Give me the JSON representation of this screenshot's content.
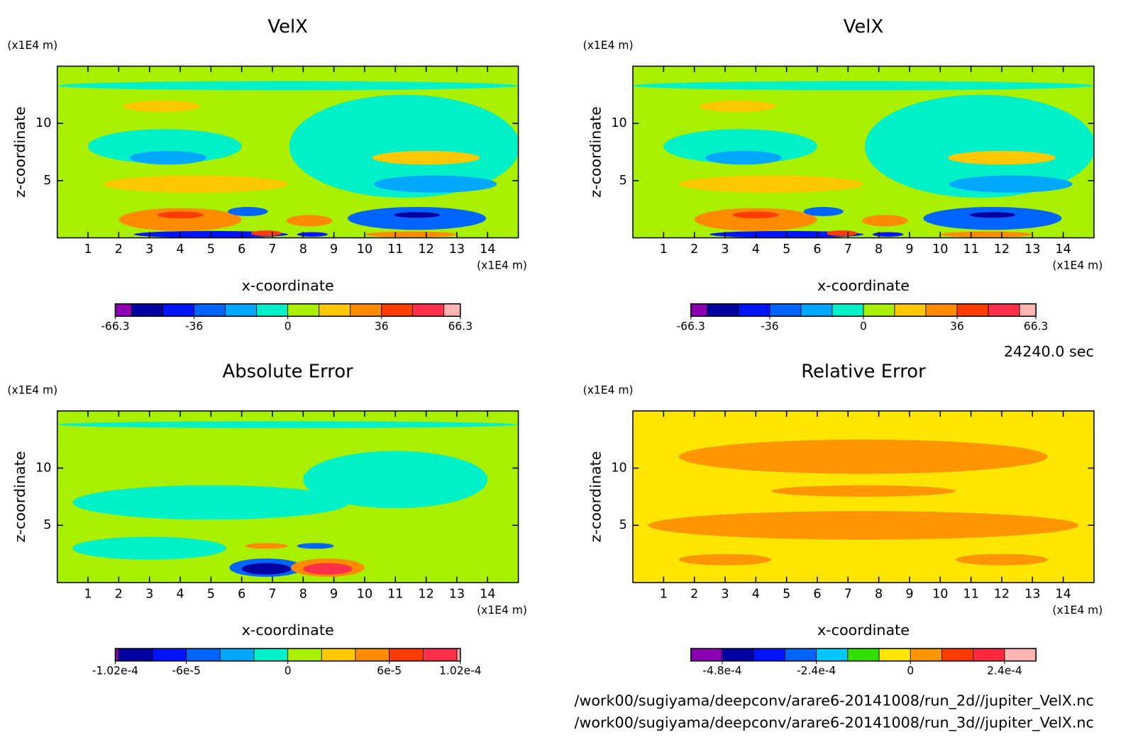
{
  "chart_data": [
    {
      "type": "contour",
      "title": "VelX",
      "x_label": "x-coordinate",
      "y_label": "z-coordinate",
      "x_unit": "(x1E4 m)",
      "y_unit": "(x1E4 m)",
      "xlim": [
        0,
        15
      ],
      "ylim": [
        0,
        15
      ],
      "xticks": [
        1,
        2,
        3,
        4,
        5,
        6,
        7,
        8,
        9,
        10,
        11,
        12,
        13,
        14
      ],
      "yticks": [
        5,
        10
      ],
      "background": 5,
      "regions": [
        {
          "x": 7.5,
          "z": 13.3,
          "width": 15,
          "height": 0.8,
          "value": -5
        },
        {
          "x": 3.5,
          "z": 8,
          "width": 5,
          "height": 3,
          "value": -6
        },
        {
          "x": 11.3,
          "z": 8,
          "width": 7.5,
          "height": 9,
          "value": -6
        },
        {
          "x": 3.6,
          "z": 7,
          "width": 2.5,
          "height": 1.2,
          "value": -18
        },
        {
          "x": 3.4,
          "z": 11.5,
          "width": 2.5,
          "height": 1,
          "value": 18
        },
        {
          "x": 4.5,
          "z": 4.7,
          "width": 6,
          "height": 1.5,
          "value": 20
        },
        {
          "x": 12.3,
          "z": 4.7,
          "width": 4,
          "height": 1.5,
          "value": -18
        },
        {
          "x": 12,
          "z": 7,
          "width": 3.5,
          "height": 1.2,
          "value": 18
        },
        {
          "x": 4,
          "z": 1.6,
          "width": 4,
          "height": 2,
          "value": 30
        },
        {
          "x": 4,
          "z": 2,
          "width": 1.5,
          "height": 0.6,
          "value": 42
        },
        {
          "x": 5,
          "z": 0.3,
          "width": 5,
          "height": 0.6,
          "value": -40
        },
        {
          "x": 11.7,
          "z": 1.7,
          "width": 4.5,
          "height": 2,
          "value": -30
        },
        {
          "x": 11.7,
          "z": 2,
          "width": 1.5,
          "height": 0.5,
          "value": -50
        },
        {
          "x": 11.5,
          "z": 0.3,
          "width": 3,
          "height": 0.5,
          "value": 30
        },
        {
          "x": 6.2,
          "z": 2.3,
          "width": 1.3,
          "height": 0.8,
          "value": -25
        },
        {
          "x": 6.8,
          "z": 0.4,
          "width": 1,
          "height": 0.5,
          "value": 45
        },
        {
          "x": 8.2,
          "z": 1.5,
          "width": 1.5,
          "height": 1,
          "value": 30
        },
        {
          "x": 8.3,
          "z": 0.3,
          "width": 1,
          "height": 0.4,
          "value": -45
        }
      ],
      "colorbar": {
        "levels": [
          -66.3,
          -60,
          -48,
          -36,
          -24,
          -12,
          0,
          12,
          24,
          36,
          48,
          60,
          66.3
        ],
        "colors": [
          "#8c00b4",
          "#0000a0",
          "#0014ff",
          "#0064ff",
          "#00a8ff",
          "#00f0c8",
          "#a8f000",
          "#ffc800",
          "#ff8c00",
          "#ff3c00",
          "#ff3048",
          "#ffb4b4"
        ],
        "ticks": [
          -66.3,
          -36,
          0,
          36,
          66.3
        ]
      }
    },
    {
      "type": "contour",
      "title": "VelX",
      "x_label": "x-coordinate",
      "y_label": "z-coordinate",
      "x_unit": "(x1E4 m)",
      "y_unit": "(x1E4 m)",
      "xlim": [
        0,
        15
      ],
      "ylim": [
        0,
        15
      ],
      "xticks": [
        1,
        2,
        3,
        4,
        5,
        6,
        7,
        8,
        9,
        10,
        11,
        12,
        13,
        14
      ],
      "yticks": [
        5,
        10
      ],
      "background": 5,
      "regions": [
        {
          "x": 7.5,
          "z": 13.3,
          "width": 15,
          "height": 0.8,
          "value": -5
        },
        {
          "x": 3.5,
          "z": 8,
          "width": 5,
          "height": 3,
          "value": -6
        },
        {
          "x": 11.3,
          "z": 8,
          "width": 7.5,
          "height": 9,
          "value": -6
        },
        {
          "x": 3.6,
          "z": 7,
          "width": 2.5,
          "height": 1.2,
          "value": -18
        },
        {
          "x": 3.4,
          "z": 11.5,
          "width": 2.5,
          "height": 1,
          "value": 18
        },
        {
          "x": 4.5,
          "z": 4.7,
          "width": 6,
          "height": 1.5,
          "value": 20
        },
        {
          "x": 12.3,
          "z": 4.7,
          "width": 4,
          "height": 1.5,
          "value": -18
        },
        {
          "x": 12,
          "z": 7,
          "width": 3.5,
          "height": 1.2,
          "value": 18
        },
        {
          "x": 4,
          "z": 1.6,
          "width": 4,
          "height": 2,
          "value": 30
        },
        {
          "x": 4,
          "z": 2,
          "width": 1.5,
          "height": 0.6,
          "value": 42
        },
        {
          "x": 5,
          "z": 0.3,
          "width": 5,
          "height": 0.6,
          "value": -40
        },
        {
          "x": 11.7,
          "z": 1.7,
          "width": 4.5,
          "height": 2,
          "value": -30
        },
        {
          "x": 11.7,
          "z": 2,
          "width": 1.5,
          "height": 0.5,
          "value": -50
        },
        {
          "x": 11.5,
          "z": 0.3,
          "width": 3,
          "height": 0.5,
          "value": 30
        },
        {
          "x": 6.2,
          "z": 2.3,
          "width": 1.3,
          "height": 0.8,
          "value": -25
        },
        {
          "x": 6.8,
          "z": 0.4,
          "width": 1,
          "height": 0.5,
          "value": 45
        },
        {
          "x": 8.2,
          "z": 1.5,
          "width": 1.5,
          "height": 1,
          "value": 30
        },
        {
          "x": 8.3,
          "z": 0.3,
          "width": 1,
          "height": 0.4,
          "value": -45
        }
      ],
      "colorbar": {
        "levels": [
          -66.3,
          -60,
          -48,
          -36,
          -24,
          -12,
          0,
          12,
          24,
          36,
          48,
          60,
          66.3
        ],
        "colors": [
          "#8c00b4",
          "#0000a0",
          "#0014ff",
          "#0064ff",
          "#00a8ff",
          "#00f0c8",
          "#a8f000",
          "#ffc800",
          "#ff8c00",
          "#ff3c00",
          "#ff3048",
          "#ffb4b4"
        ],
        "ticks": [
          -66.3,
          -36,
          0,
          36,
          66.3
        ]
      }
    },
    {
      "type": "contour",
      "title": "Absolute Error",
      "x_label": "x-coordinate",
      "y_label": "z-coordinate",
      "x_unit": "(x1E4 m)",
      "y_unit": "(x1E4 m)",
      "xlim": [
        0,
        15
      ],
      "ylim": [
        0,
        15
      ],
      "xticks": [
        1,
        2,
        3,
        4,
        5,
        6,
        7,
        8,
        9,
        10,
        11,
        12,
        13,
        14
      ],
      "yticks": [
        5,
        10
      ],
      "background": 1e-05,
      "regions": [
        {
          "x": 7.5,
          "z": 13.8,
          "width": 15,
          "height": 0.6,
          "value": -1e-05
        },
        {
          "x": 5,
          "z": 7,
          "width": 9,
          "height": 3,
          "value": -1e-05
        },
        {
          "x": 11,
          "z": 9,
          "width": 6,
          "height": 5,
          "value": -1e-05
        },
        {
          "x": 3,
          "z": 3,
          "width": 5,
          "height": 2,
          "value": -1e-05
        },
        {
          "x": 6.8,
          "z": 1.3,
          "width": 2.4,
          "height": 1.6,
          "value": -5e-05
        },
        {
          "x": 6.8,
          "z": 1.2,
          "width": 1.6,
          "height": 1,
          "value": -9e-05
        },
        {
          "x": 8.8,
          "z": 1.3,
          "width": 2.4,
          "height": 1.6,
          "value": 5e-05
        },
        {
          "x": 8.8,
          "z": 1.2,
          "width": 1.6,
          "height": 1,
          "value": 9e-05
        },
        {
          "x": 6.8,
          "z": 3.2,
          "width": 1.4,
          "height": 0.5,
          "value": 5e-05
        },
        {
          "x": 8.4,
          "z": 3.2,
          "width": 1.2,
          "height": 0.5,
          "value": -5e-05
        }
      ],
      "colorbar": {
        "levels": [
          -0.000102,
          -0.0001,
          -8e-05,
          -6e-05,
          -4e-05,
          -2e-05,
          0,
          2e-05,
          4e-05,
          6e-05,
          8e-05,
          0.0001,
          0.000102
        ],
        "colors": [
          "#8c00b4",
          "#0000a0",
          "#0014ff",
          "#0064ff",
          "#00a8ff",
          "#00f0c8",
          "#a8f000",
          "#ffc800",
          "#ff8c00",
          "#ff3c00",
          "#ff3048",
          "#ffb4b4"
        ],
        "ticks": [
          {
            "value": -0.000102,
            "label": "-1.02e-4"
          },
          {
            "value": -6e-05,
            "label": "-6e-5"
          },
          0,
          {
            "value": 6e-05,
            "label": "6e-5"
          },
          {
            "value": 0.000102,
            "label": "1.02e-4"
          }
        ]
      }
    },
    {
      "type": "contour",
      "title": "Relative Error",
      "x_label": "x-coordinate",
      "y_label": "z-coordinate",
      "x_unit": "(x1E4 m)",
      "y_unit": "(x1E4 m)",
      "xlim": [
        0,
        15
      ],
      "ylim": [
        0,
        15
      ],
      "xticks": [
        1,
        2,
        3,
        4,
        5,
        6,
        7,
        8,
        9,
        10,
        11,
        12,
        13,
        14
      ],
      "yticks": [
        5,
        10
      ],
      "background": -4e-05,
      "regions": [
        {
          "x": 7.5,
          "z": 11,
          "width": 12,
          "height": 3,
          "value": 4e-05
        },
        {
          "x": 7.5,
          "z": 5,
          "width": 14,
          "height": 2.5,
          "value": 4e-05
        },
        {
          "x": 7.5,
          "z": 8,
          "width": 6,
          "height": 1,
          "value": 4e-05
        },
        {
          "x": 3,
          "z": 2,
          "width": 3,
          "height": 1,
          "value": 4e-05
        },
        {
          "x": 12,
          "z": 2,
          "width": 3,
          "height": 1,
          "value": 4e-05
        }
      ],
      "colorbar": {
        "levels": [
          -0.00056,
          -0.00048,
          -0.0004,
          -0.00032,
          -0.00024,
          -0.00016,
          -8e-05,
          0,
          8e-05,
          0.00016,
          0.00024,
          0.00032
        ],
        "colors": [
          "#8c00b4",
          "#0000a0",
          "#0014ff",
          "#0064ff",
          "#00c8ff",
          "#30e000",
          "#ffe600",
          "#ff9600",
          "#ff3c00",
          "#ff2840",
          "#ffb4b4"
        ],
        "ticks": [
          {
            "value": -0.00048,
            "label": "-4.8e-4"
          },
          {
            "value": -0.00024,
            "label": "-2.4e-4"
          },
          0,
          {
            "value": 0.00024,
            "label": "2.4e-4"
          }
        ]
      }
    }
  ],
  "footer": {
    "time": "24240.0 sec",
    "files": [
      "/work00/sugiyama/deepconv/arare6-20141008/run_2d//jupiter_VelX.nc",
      "/work00/sugiyama/deepconv/arare6-20141008/run_3d//jupiter_VelX.nc"
    ]
  }
}
